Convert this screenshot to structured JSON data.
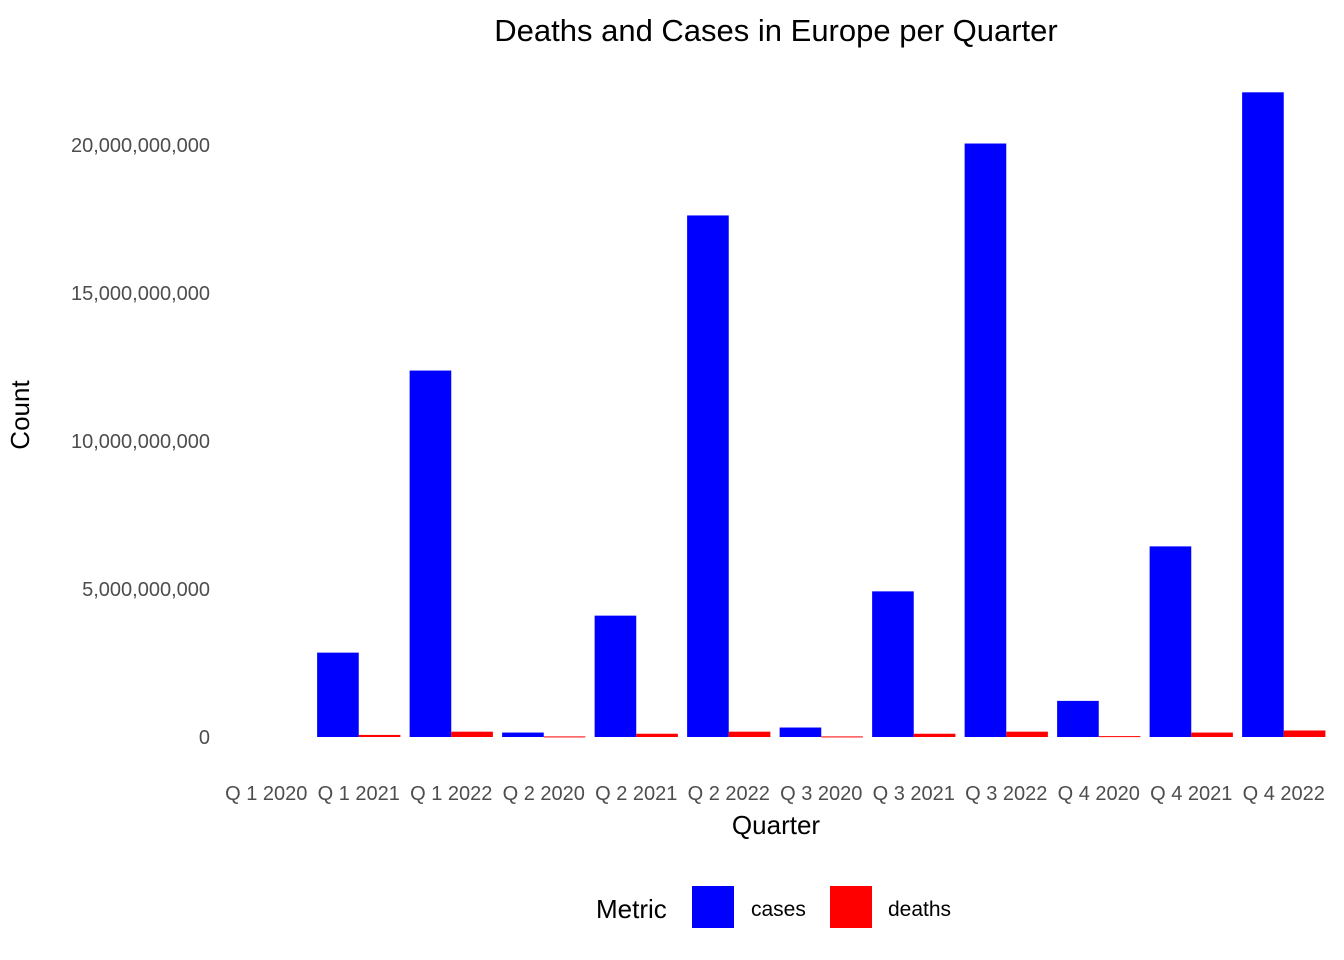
{
  "chart_data": {
    "type": "bar",
    "title": "Deaths and Cases in Europe per Quarter",
    "xlabel": "Quarter",
    "ylabel": "Count",
    "categories": [
      "Q 1 2020",
      "Q 1 2021",
      "Q 1 2022",
      "Q 2 2020",
      "Q 2 2021",
      "Q 2 2022",
      "Q 3 2020",
      "Q 3 2021",
      "Q 3 2022",
      "Q 4 2020",
      "Q 4 2021",
      "Q 4 2022"
    ],
    "series": [
      {
        "name": "cases",
        "color": "#0000FF",
        "values": [
          0,
          2850000000,
          12380000000,
          150000000,
          4100000000,
          17620000000,
          320000000,
          4920000000,
          20050000000,
          1220000000,
          6440000000,
          21780000000
        ]
      },
      {
        "name": "deaths",
        "color": "#FF0000",
        "values": [
          0,
          70000000,
          180000000,
          20000000,
          110000000,
          180000000,
          20000000,
          110000000,
          180000000,
          30000000,
          150000000,
          220000000
        ]
      }
    ],
    "ylim": [
      0,
      22000000000
    ],
    "yticks": [
      0,
      5000000000,
      10000000000,
      15000000000,
      20000000000
    ],
    "ytick_labels": [
      "0",
      "5,000,000,000",
      "10,000,000,000",
      "15,000,000,000",
      "20,000,000,000"
    ],
    "grid": false,
    "legend": {
      "title": "Metric",
      "position": "bottom",
      "entries": [
        "cases",
        "deaths"
      ]
    }
  }
}
